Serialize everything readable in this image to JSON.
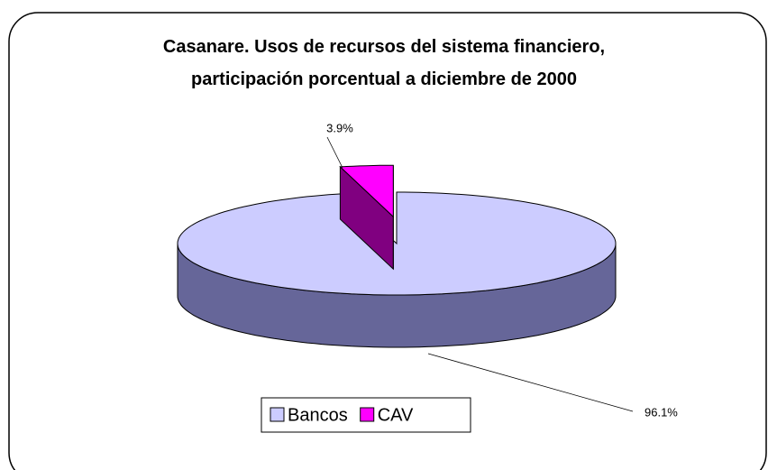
{
  "chart_data": {
    "type": "pie",
    "title": "Casanare. Usos de recursos del sistema financiero, participación porcentual a diciembre de 2000",
    "categories": [
      "Bancos",
      "CAV"
    ],
    "values": [
      96.1,
      3.9
    ],
    "value_labels": [
      "96.1%",
      "3.9%"
    ],
    "colors": [
      "#ccccff",
      "#ff00ff"
    ],
    "side_colors": [
      "#666699",
      "#800080"
    ],
    "exploded": [
      false,
      true
    ],
    "legend": "bottom",
    "three_d": true
  }
}
